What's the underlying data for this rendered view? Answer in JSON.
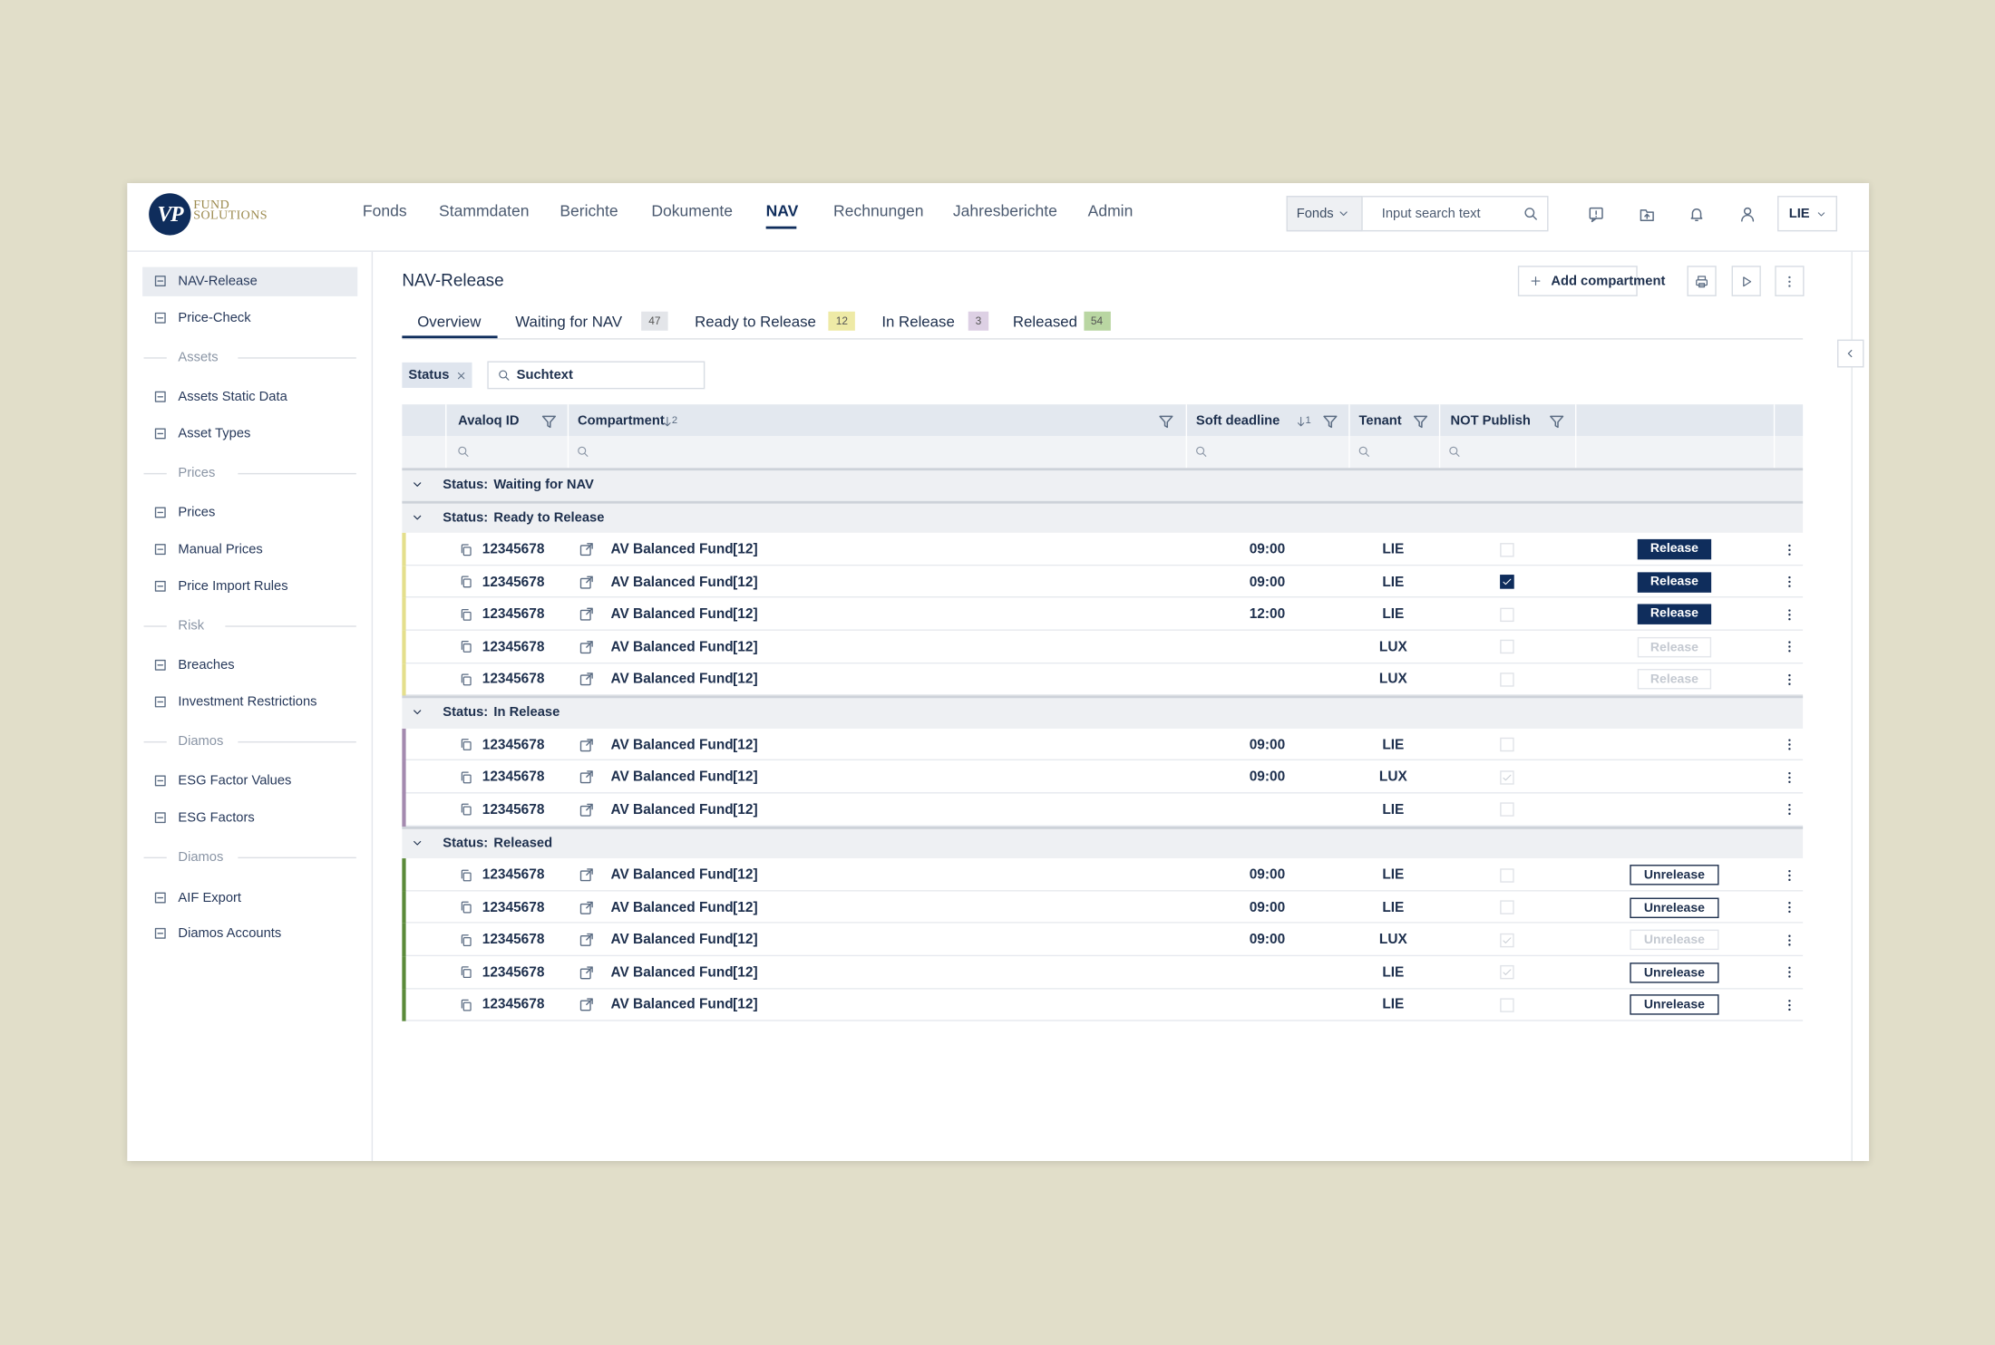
{
  "header": {
    "logo": {
      "mark": "VP",
      "lines": [
        "FUND",
        "SOLUTIONS"
      ]
    },
    "nav": [
      {
        "label": "Fonds"
      },
      {
        "label": "Stammdaten"
      },
      {
        "label": "Berichte"
      },
      {
        "label": "Dokumente"
      },
      {
        "label": "NAV",
        "active": true
      },
      {
        "label": "Rechnungen"
      },
      {
        "label": "Jahresberichte"
      },
      {
        "label": "Admin"
      }
    ],
    "search": {
      "scope": "Fonds",
      "placeholder": "Input search text"
    },
    "tenant": "LIE"
  },
  "sidebar": [
    {
      "label": "NAV-Release",
      "active": true
    },
    {
      "label": "Price-Check"
    },
    {
      "section": "Assets"
    },
    {
      "label": "Assets Static Data"
    },
    {
      "label": "Asset Types"
    },
    {
      "section": "Prices"
    },
    {
      "label": "Prices"
    },
    {
      "label": "Manual Prices"
    },
    {
      "label": "Price Import Rules"
    },
    {
      "section": "Risk"
    },
    {
      "label": "Breaches"
    },
    {
      "label": "Investment Restrictions"
    },
    {
      "section": "Diamos"
    },
    {
      "label": "ESG Factor Values"
    },
    {
      "label": "ESG Factors"
    },
    {
      "section": "Diamos"
    },
    {
      "label": "AIF Export"
    },
    {
      "label": "Diamos Accounts"
    }
  ],
  "page": {
    "title": "NAV-Release",
    "add_button": "Add compartment",
    "tabs": [
      {
        "label": "Overview",
        "active": true
      },
      {
        "label": "Waiting for NAV",
        "count": 47,
        "color": "#e3e5e9"
      },
      {
        "label": "Ready to Release",
        "count": 12,
        "color": "#eeeaa6"
      },
      {
        "label": "In Release",
        "count": 3,
        "color": "#ddd0e4"
      },
      {
        "label": "Released",
        "count": 54,
        "color": "#b9d6a2"
      }
    ],
    "filter": {
      "chip": "Status",
      "search_placeholder": "Suchtext"
    }
  },
  "table": {
    "columns": [
      {
        "label": "Avaloq ID"
      },
      {
        "label": "Compartment",
        "sort": 2
      },
      {
        "label": "Soft deadline",
        "sort": 1
      },
      {
        "label": "Tenant"
      },
      {
        "label": "NOT Publish"
      }
    ],
    "group_label": "Status:",
    "groups": [
      {
        "status": "Waiting for NAV",
        "rows": []
      },
      {
        "status": "Ready to Release",
        "color": "#e4df8c",
        "editable": true,
        "rows": [
          {
            "id": "12345678",
            "compartment": "AV Balanced Fund",
            "count": "[12]",
            "deadline": "09:00",
            "tenant": "LIE",
            "not_publish": false,
            "action": "Release",
            "action_enabled": true
          },
          {
            "id": "12345678",
            "compartment": "AV Balanced Fund",
            "count": "[12]",
            "deadline": "09:00",
            "tenant": "LIE",
            "not_publish": true,
            "action": "Release",
            "action_enabled": true
          },
          {
            "id": "12345678",
            "compartment": "AV Balanced Fund",
            "count": "[12]",
            "deadline": "12:00",
            "tenant": "LIE",
            "not_publish": false,
            "action": "Release",
            "action_enabled": true
          },
          {
            "id": "12345678",
            "compartment": "AV Balanced Fund",
            "count": "[12]",
            "deadline": null,
            "tenant": "LUX",
            "not_publish": false,
            "action": "Release",
            "action_enabled": false
          },
          {
            "id": "12345678",
            "compartment": "AV Balanced Fund",
            "count": "[12]",
            "deadline": null,
            "tenant": "LUX",
            "not_publish": false,
            "action": "Release",
            "action_enabled": false
          }
        ]
      },
      {
        "status": "In Release",
        "color": "#a48aaf",
        "editable": false,
        "rows": [
          {
            "id": "12345678",
            "compartment": "AV Balanced Fund",
            "count": "[12]",
            "deadline": "09:00",
            "tenant": "LIE",
            "not_publish": false
          },
          {
            "id": "12345678",
            "compartment": "AV Balanced Fund",
            "count": "[12]",
            "deadline": "09:00",
            "tenant": "LUX",
            "not_publish": true
          },
          {
            "id": "12345678",
            "compartment": "AV Balanced Fund",
            "count": "[12]",
            "deadline": null,
            "tenant": "LIE",
            "not_publish": false
          }
        ]
      },
      {
        "status": "Released",
        "color": "#5b8a3a",
        "editable": false,
        "rows": [
          {
            "id": "12345678",
            "compartment": "AV Balanced Fund",
            "count": "[12]",
            "deadline": "09:00",
            "tenant": "LIE",
            "not_publish": false,
            "action": "Unrelease",
            "action_enabled": true
          },
          {
            "id": "12345678",
            "compartment": "AV Balanced Fund",
            "count": "[12]",
            "deadline": "09:00",
            "tenant": "LIE",
            "not_publish": false,
            "action": "Unrelease",
            "action_enabled": true
          },
          {
            "id": "12345678",
            "compartment": "AV Balanced Fund",
            "count": "[12]",
            "deadline": "09:00",
            "tenant": "LUX",
            "not_publish": true,
            "action": "Unrelease",
            "action_enabled": false
          },
          {
            "id": "12345678",
            "compartment": "AV Balanced Fund",
            "count": "[12]",
            "deadline": null,
            "tenant": "LIE",
            "not_publish": true,
            "action": "Unrelease",
            "action_enabled": true
          },
          {
            "id": "12345678",
            "compartment": "AV Balanced Fund",
            "count": "[12]",
            "deadline": null,
            "tenant": "LIE",
            "not_publish": false,
            "action": "Unrelease",
            "action_enabled": true
          }
        ]
      }
    ]
  }
}
